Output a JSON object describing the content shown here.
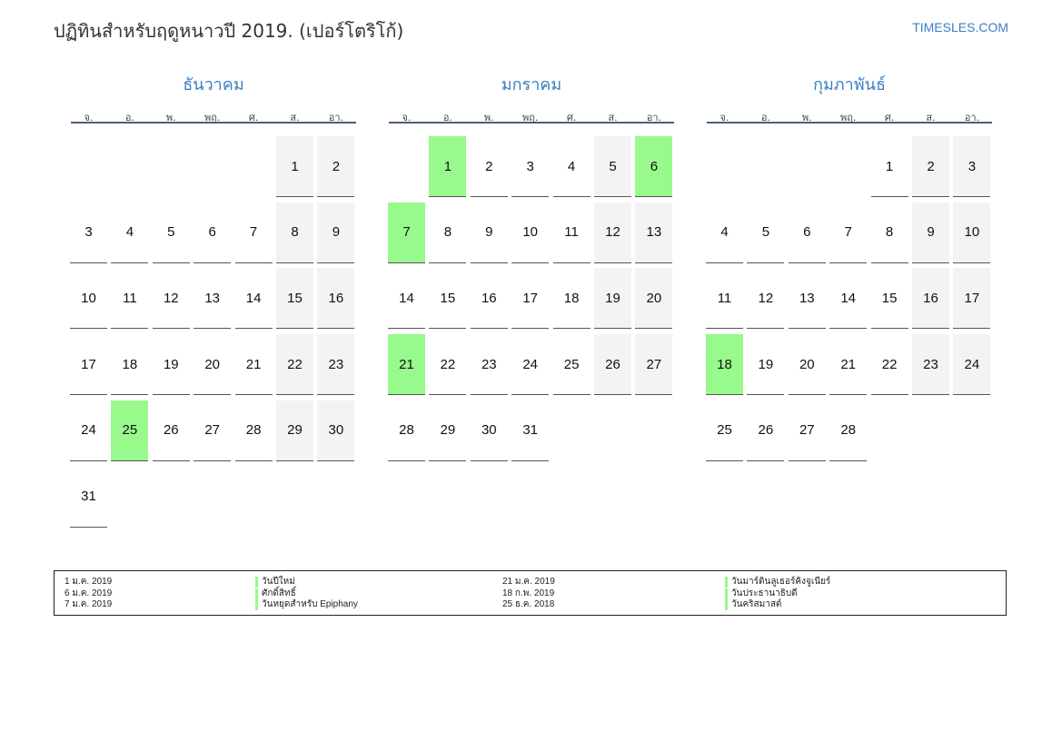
{
  "header": {
    "title": "ปฏิทินสำหรับฤดูหนาวปี 2019. (เปอร์โตริโก้)",
    "site": "TIMESLES.COM"
  },
  "weekdays": [
    "จ.",
    "อ.",
    "พ.",
    "พฤ.",
    "ศ.",
    "ส.",
    "อา."
  ],
  "months": [
    {
      "name": "ธันวาคม",
      "start_offset": 5,
      "days": 31,
      "holidays": [
        25
      ]
    },
    {
      "name": "มกราคม",
      "start_offset": 1,
      "days": 31,
      "holidays": [
        1,
        6,
        7,
        21
      ]
    },
    {
      "name": "กุมภาพันธ์",
      "start_offset": 4,
      "days": 28,
      "holidays": [
        18
      ]
    }
  ],
  "legend": {
    "left": [
      {
        "date": "1 ม.ค. 2019",
        "name": "วันปีใหม่"
      },
      {
        "date": "6 ม.ค. 2019",
        "name": "ศักดิ์สิทธิ์"
      },
      {
        "date": "7 ม.ค. 2019",
        "name": "วันหยุดสำหรับ Epiphany"
      }
    ],
    "right": [
      {
        "date": "21 ม.ค. 2019",
        "name": "วันมาร์ตินลูเธอร์คิงจูเนียร์"
      },
      {
        "date": "18 ก.พ. 2019",
        "name": "วันประธานาธิบดี"
      },
      {
        "date": "25 ธ.ค. 2018",
        "name": "วันคริสมาสต์"
      }
    ]
  },
  "colors": {
    "holiday": "#98f98c",
    "weekend": "#f3f3f3",
    "accent": "#3a7fc1"
  }
}
